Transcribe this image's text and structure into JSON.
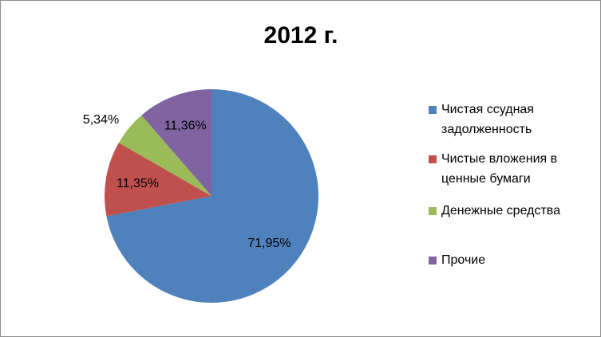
{
  "chart_data": {
    "type": "pie",
    "title": "2012 г.",
    "categories": [
      "Чистая ссудная задолженность",
      "Чистые вложения в ценные бумаги",
      "Денежные средства",
      "Прочие"
    ],
    "values": [
      71.95,
      11.35,
      5.34,
      11.36
    ],
    "value_labels": [
      "71,95%",
      "11,35%",
      "5,34%",
      "11,36%"
    ],
    "colors": [
      "#4f81bd",
      "#c0504d",
      "#9bbb59",
      "#8064a2"
    ],
    "legend": "right"
  }
}
